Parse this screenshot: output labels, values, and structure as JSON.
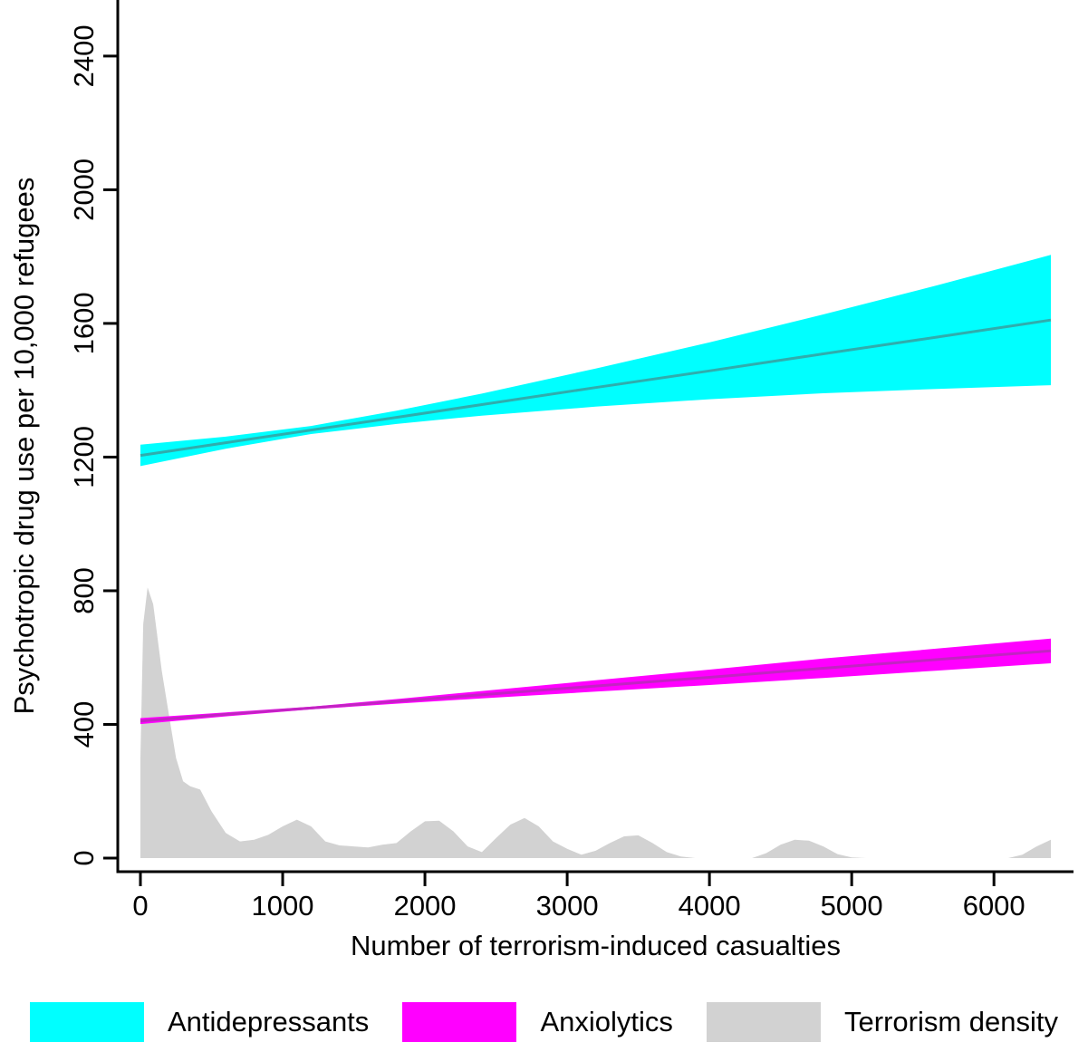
{
  "chart_data": {
    "type": "area",
    "title": "",
    "xlabel": "Number of terrorism-induced casualties",
    "ylabel": "Psychotropic drug use per 10,000 refugees",
    "xlim": [
      0,
      6400
    ],
    "ylim": [
      0,
      2500
    ],
    "x_ticks": [
      0,
      1000,
      2000,
      3000,
      4000,
      5000,
      6000
    ],
    "y_ticks": [
      0,
      400,
      800,
      1200,
      1600,
      2000,
      2400
    ],
    "grid": false,
    "legend_position": "bottom",
    "series": [
      {
        "name": "Terrorism density",
        "type": "density_area",
        "fill_color": "#d2d2d2",
        "x": [
          0,
          20,
          50,
          90,
          150,
          200,
          250,
          300,
          350,
          420,
          500,
          600,
          700,
          800,
          900,
          1000,
          1100,
          1200,
          1300,
          1400,
          1500,
          1600,
          1700,
          1800,
          1900,
          2000,
          2100,
          2200,
          2300,
          2400,
          2500,
          2600,
          2700,
          2800,
          2900,
          3000,
          3100,
          3200,
          3300,
          3400,
          3500,
          3600,
          3700,
          3800,
          3900,
          4300,
          4400,
          4500,
          4600,
          4700,
          4800,
          4900,
          5000,
          5100,
          6100,
          6200,
          6300,
          6400
        ],
        "y": [
          300,
          700,
          810,
          760,
          560,
          430,
          300,
          230,
          215,
          205,
          140,
          75,
          50,
          55,
          70,
          95,
          115,
          95,
          50,
          38,
          35,
          32,
          40,
          45,
          80,
          110,
          112,
          80,
          35,
          18,
          60,
          100,
          120,
          95,
          50,
          28,
          10,
          22,
          45,
          65,
          68,
          45,
          18,
          5,
          0,
          0,
          15,
          40,
          55,
          52,
          35,
          12,
          2,
          0,
          0,
          10,
          35,
          55
        ]
      },
      {
        "name": "Antidepressants",
        "type": "fit_line_ci",
        "band_color": "#00ffff",
        "line_color": "#2fadad",
        "x": [
          0,
          600,
          1200,
          1800,
          2400,
          3200,
          4000,
          4800,
          5600,
          6400
        ],
        "fit": [
          1205,
          1243,
          1281,
          1319,
          1357,
          1408,
          1458,
          1509,
          1559,
          1610
        ],
        "upper": [
          1237,
          1261,
          1293,
          1339,
          1390,
          1465,
          1543,
          1627,
          1714,
          1805
        ],
        "lower": [
          1173,
          1225,
          1269,
          1299,
          1324,
          1351,
          1373,
          1391,
          1404,
          1415
        ]
      },
      {
        "name": "Anxiolytics",
        "type": "fit_line_ci",
        "band_color": "#ff00ff",
        "line_color": "#c224c2",
        "x": [
          0,
          600,
          1200,
          1800,
          2400,
          3200,
          4000,
          4800,
          5600,
          6400
        ],
        "fit": [
          410,
          430,
          449,
          469,
          489,
          515,
          541,
          568,
          594,
          620
        ],
        "upper": [
          419,
          436,
          453,
          476,
          500,
          532,
          564,
          597,
          627,
          657
        ],
        "lower": [
          401,
          424,
          445,
          462,
          478,
          498,
          518,
          539,
          561,
          583
        ]
      }
    ],
    "legend": [
      {
        "label": "Antidepressants",
        "color": "#00ffff"
      },
      {
        "label": "Anxiolytics",
        "color": "#ff00ff"
      },
      {
        "label": "Terrorism density",
        "color": "#d2d2d2"
      }
    ]
  }
}
